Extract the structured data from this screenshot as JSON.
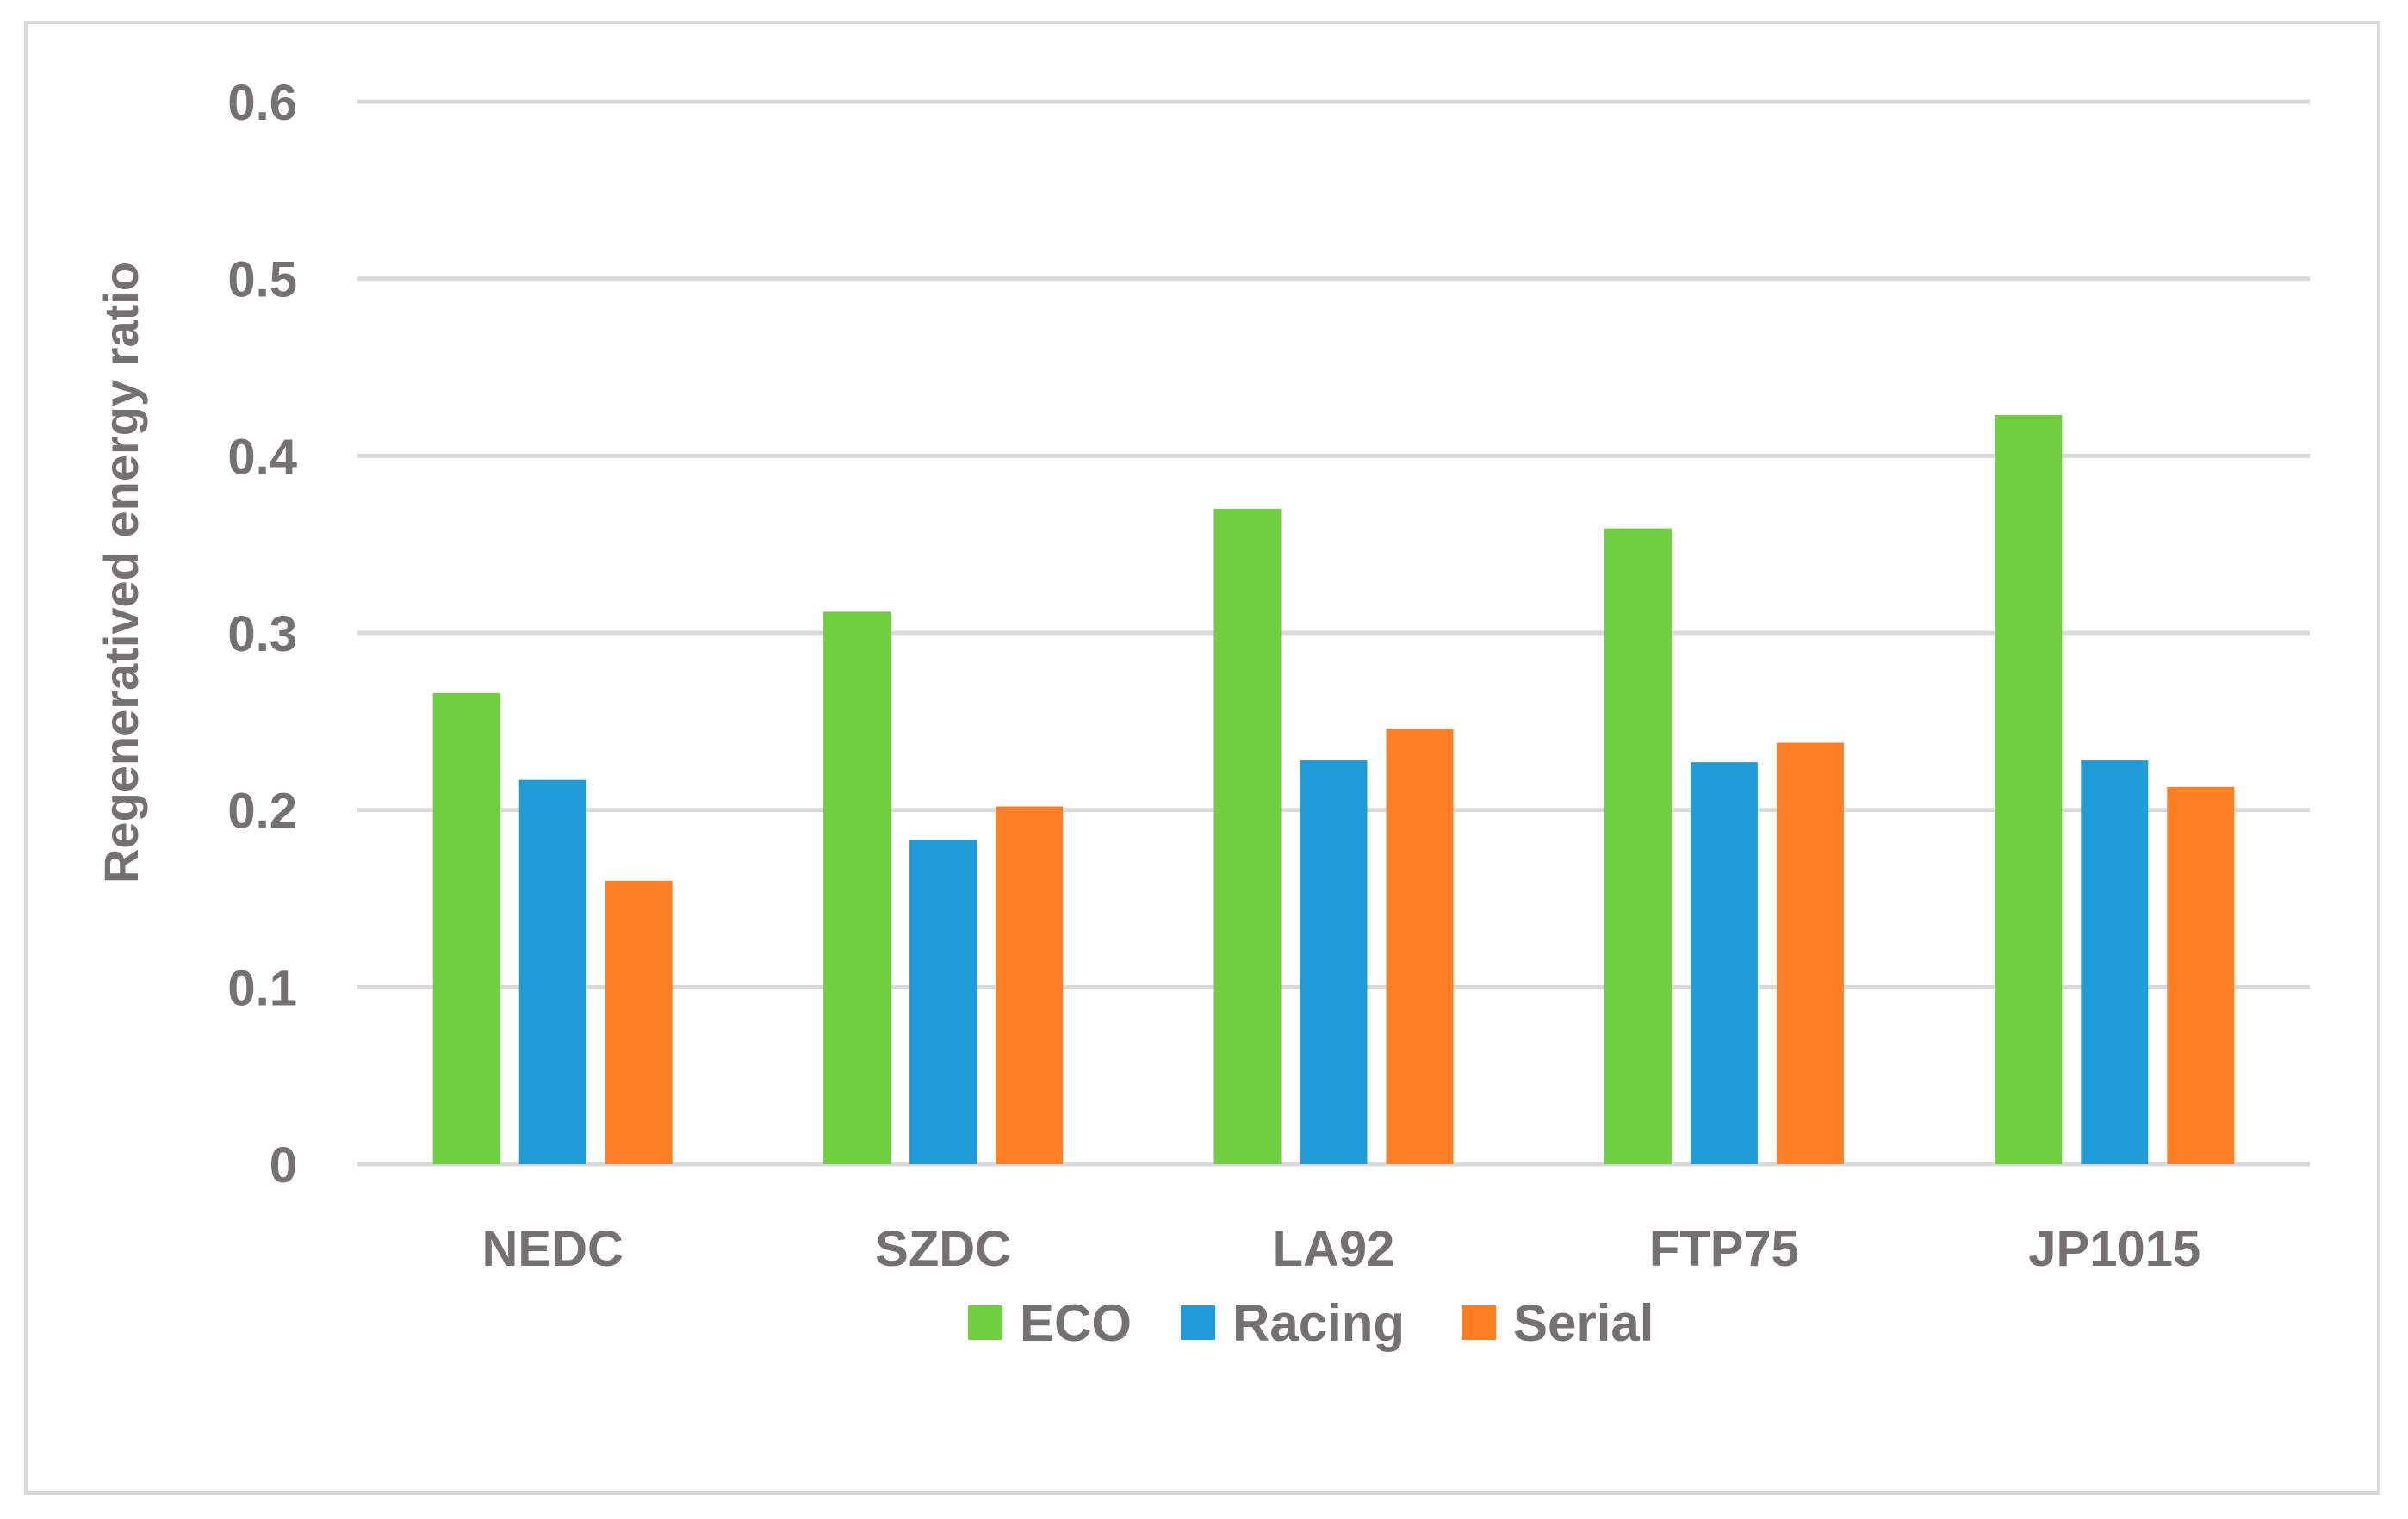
{
  "chart_data": {
    "type": "bar",
    "title": "",
    "xlabel": "",
    "ylabel": "Regeneratived energy ratio",
    "ylim": [
      0,
      0.6
    ],
    "yticks": [
      0,
      0.1,
      0.2,
      0.3,
      0.4,
      0.5,
      0.6
    ],
    "ytick_labels": [
      "0",
      "0.1",
      "0.2",
      "0.3",
      "0.4",
      "0.5",
      "0.6"
    ],
    "grid": true,
    "legend_position": "bottom-center",
    "categories": [
      "NEDC",
      "SZDC",
      "LA92",
      "FTP75",
      "JP1015"
    ],
    "series": [
      {
        "name": "ECO",
        "color": "#6fcf3f",
        "values": [
          0.266,
          0.312,
          0.37,
          0.359,
          0.423
        ]
      },
      {
        "name": "Racing",
        "color": "#1f9bd7",
        "values": [
          0.217,
          0.183,
          0.228,
          0.227,
          0.228
        ]
      },
      {
        "name": "Serial",
        "color": "#fc7f26",
        "values": [
          0.16,
          0.202,
          0.246,
          0.238,
          0.213
        ]
      }
    ]
  }
}
